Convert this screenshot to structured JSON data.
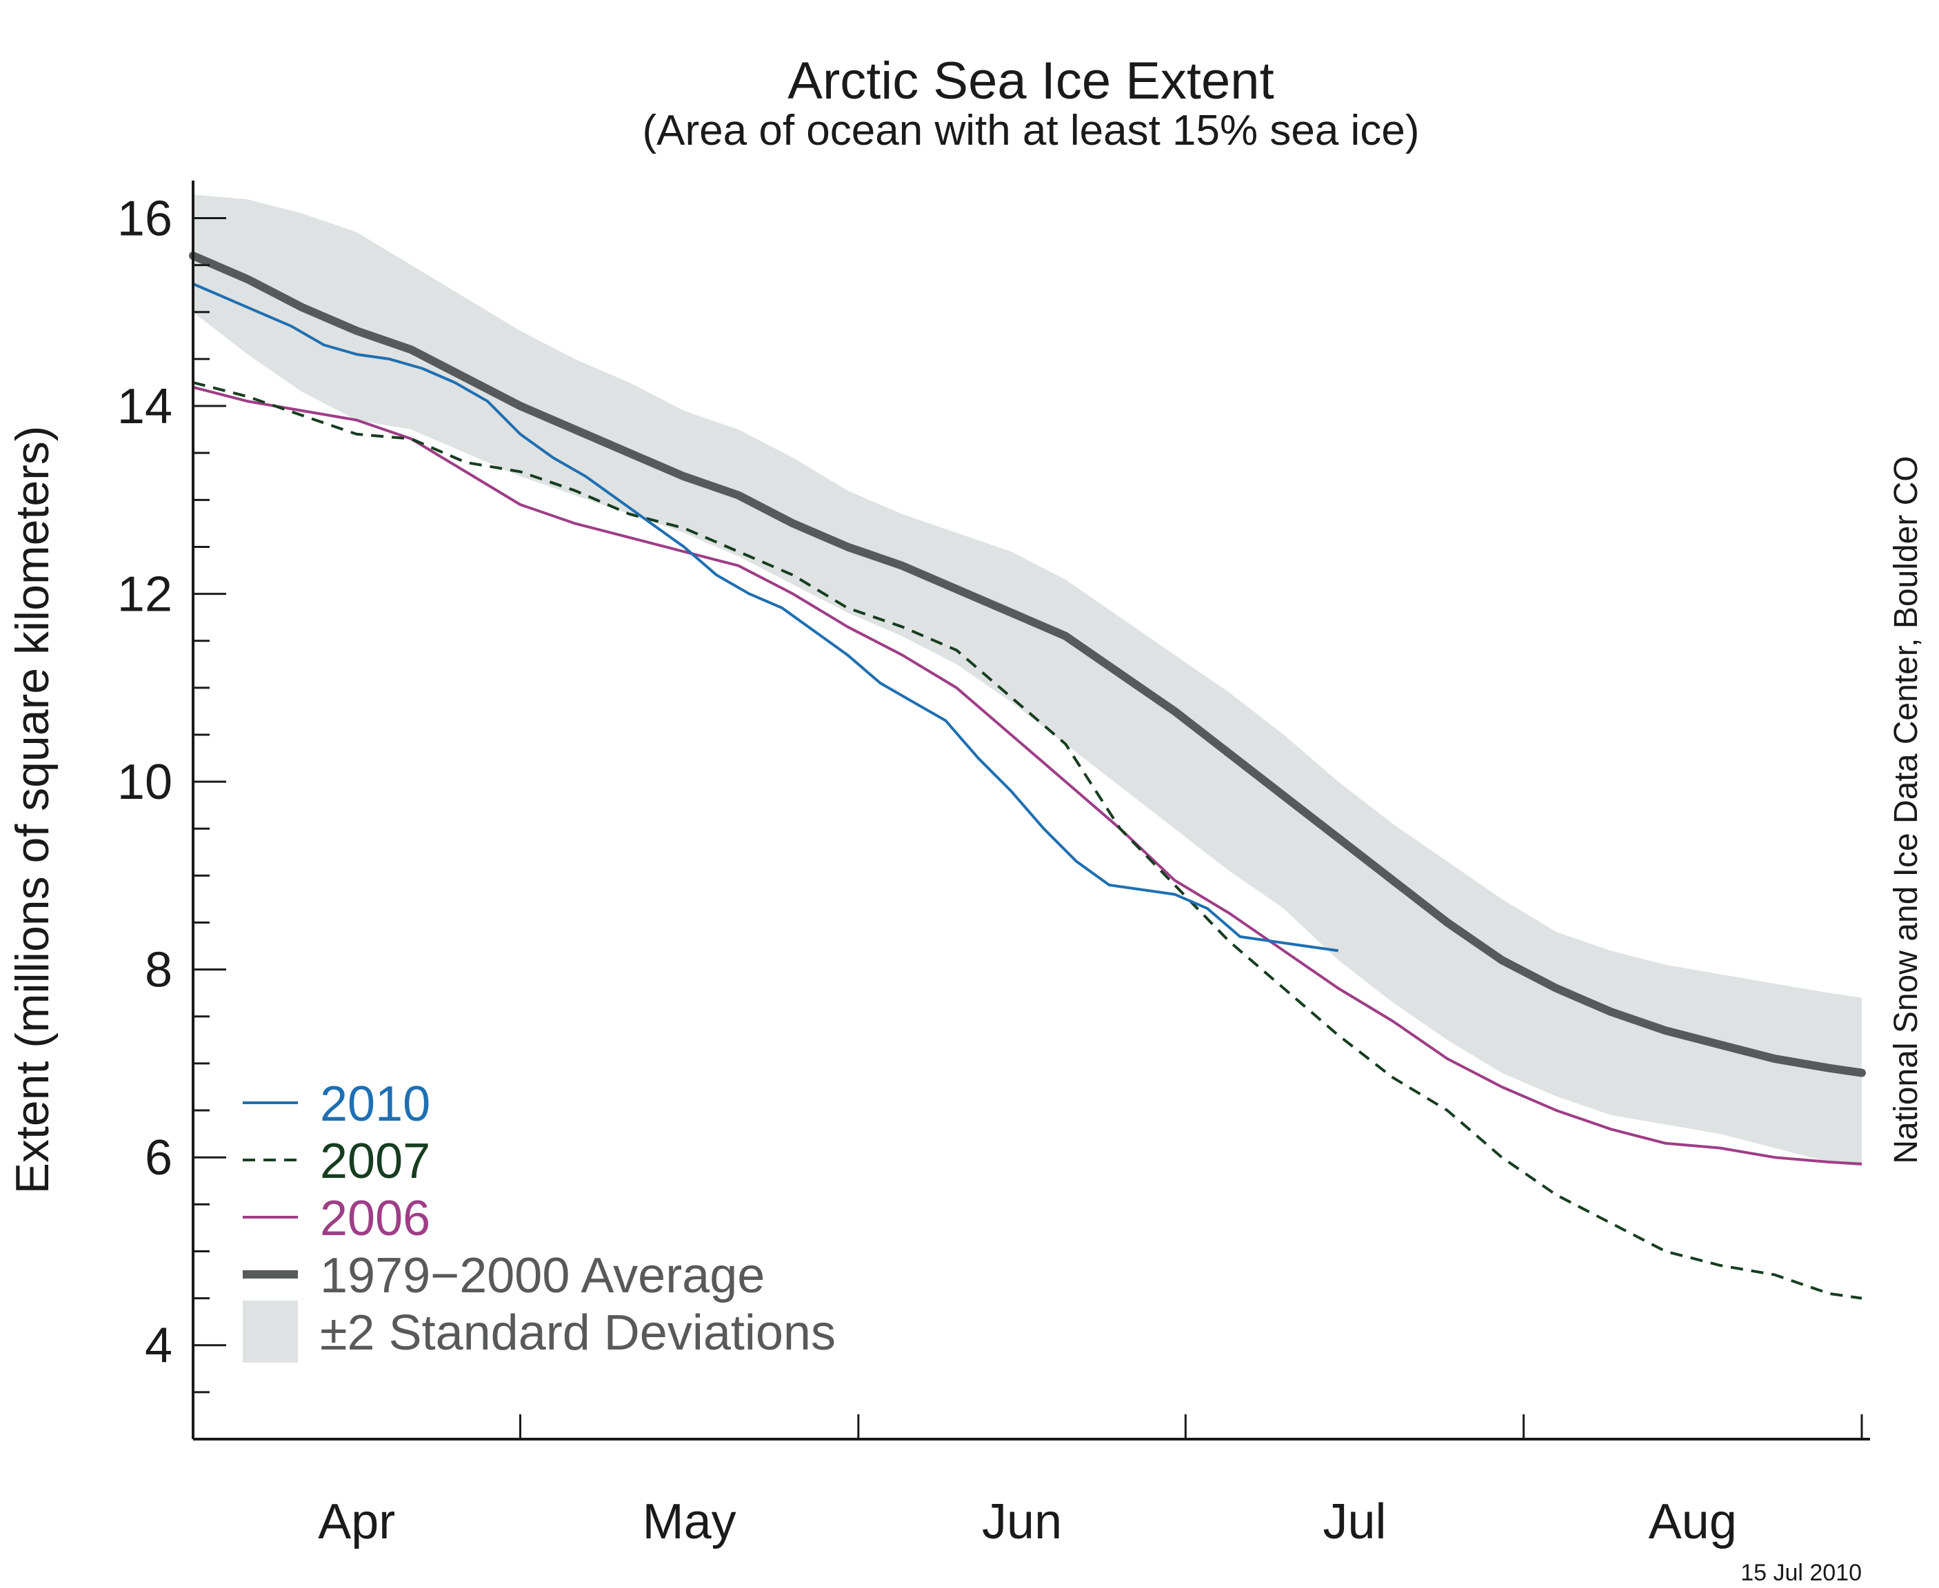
{
  "chart_data": {
    "type": "line",
    "title": "Arctic Sea Ice Extent",
    "subtitle": "(Area of ocean with at least 15% sea ice)",
    "ylabel": "Extent (millions of square kilometers)",
    "xlabel": "",
    "ylim": [
      3,
      16.4
    ],
    "xlim": [
      0,
      153
    ],
    "yticks": [
      4,
      6,
      8,
      10,
      12,
      14,
      16
    ],
    "xtick_months": [
      "Apr",
      "May",
      "Jun",
      "Jul",
      "Aug"
    ],
    "month_boundaries": [
      0,
      30,
      61,
      91,
      122,
      153
    ],
    "grid": false,
    "legend_position": "bottom-left",
    "credit": "National Snow and Ice Data Center, Boulder CO",
    "date": "15 Jul 2010",
    "series": [
      {
        "name": "2010",
        "color": "#1f6fb2",
        "style": "solid",
        "x": [
          0,
          3,
          6,
          9,
          12,
          15,
          18,
          21,
          24,
          27,
          30,
          33,
          36,
          39,
          42,
          45,
          48,
          51,
          54,
          57,
          60,
          63,
          66,
          69,
          72,
          75,
          78,
          81,
          84,
          87,
          90,
          93,
          96,
          99,
          102,
          105
        ],
        "y": [
          15.3,
          15.15,
          15.0,
          14.85,
          14.65,
          14.55,
          14.5,
          14.4,
          14.25,
          14.05,
          13.7,
          13.45,
          13.25,
          13.0,
          12.75,
          12.5,
          12.2,
          12.0,
          11.85,
          11.6,
          11.35,
          11.05,
          10.85,
          10.65,
          10.25,
          9.9,
          9.5,
          9.15,
          8.9,
          8.85,
          8.8,
          8.65,
          8.35,
          8.3,
          8.25,
          8.2
        ]
      },
      {
        "name": "2007",
        "color": "#173d21",
        "style": "dashed",
        "x": [
          0,
          5,
          10,
          15,
          20,
          25,
          30,
          35,
          40,
          45,
          50,
          55,
          60,
          65,
          70,
          75,
          80,
          85,
          90,
          95,
          100,
          105,
          110,
          115,
          120,
          125,
          130,
          135,
          140,
          145,
          150,
          153
        ],
        "y": [
          14.25,
          14.1,
          13.9,
          13.7,
          13.65,
          13.4,
          13.3,
          13.1,
          12.85,
          12.7,
          12.45,
          12.2,
          11.85,
          11.65,
          11.4,
          10.9,
          10.4,
          9.5,
          8.9,
          8.3,
          7.8,
          7.3,
          6.85,
          6.5,
          6.0,
          5.6,
          5.3,
          5.0,
          4.85,
          4.75,
          4.55,
          4.5
        ]
      },
      {
        "name": "2006",
        "color": "#9e3e86",
        "style": "solid",
        "x": [
          0,
          5,
          10,
          15,
          20,
          25,
          30,
          35,
          40,
          45,
          50,
          55,
          60,
          65,
          70,
          75,
          80,
          85,
          90,
          95,
          100,
          105,
          110,
          115,
          120,
          125,
          130,
          135,
          140,
          145,
          150,
          153
        ],
        "y": [
          14.2,
          14.05,
          13.95,
          13.85,
          13.65,
          13.3,
          12.95,
          12.75,
          12.6,
          12.45,
          12.3,
          12.0,
          11.65,
          11.35,
          11.0,
          10.5,
          10.0,
          9.5,
          8.95,
          8.6,
          8.2,
          7.8,
          7.45,
          7.05,
          6.75,
          6.5,
          6.3,
          6.15,
          6.1,
          6.0,
          5.95,
          5.93
        ]
      },
      {
        "name": "1979−2000 Average",
        "color": "#58595b",
        "style": "thick",
        "x": [
          0,
          5,
          10,
          15,
          20,
          25,
          30,
          35,
          40,
          45,
          50,
          55,
          60,
          65,
          70,
          75,
          80,
          85,
          90,
          95,
          100,
          105,
          110,
          115,
          120,
          125,
          130,
          135,
          140,
          145,
          150,
          153
        ],
        "y": [
          15.6,
          15.35,
          15.05,
          14.8,
          14.6,
          14.3,
          14.0,
          13.75,
          13.5,
          13.25,
          13.05,
          12.75,
          12.5,
          12.3,
          12.05,
          11.8,
          11.55,
          11.15,
          10.75,
          10.3,
          9.85,
          9.4,
          8.95,
          8.5,
          8.1,
          7.8,
          7.55,
          7.35,
          7.2,
          7.05,
          6.95,
          6.9
        ]
      },
      {
        "name": "±2 Standard Deviations",
        "color": "#dfe2e2",
        "style": "band",
        "x": [
          0,
          5,
          10,
          15,
          20,
          25,
          30,
          35,
          40,
          45,
          50,
          55,
          60,
          65,
          70,
          75,
          80,
          85,
          90,
          95,
          100,
          105,
          110,
          115,
          120,
          125,
          130,
          135,
          140,
          145,
          150,
          153
        ],
        "upper": [
          16.25,
          16.2,
          16.05,
          15.85,
          15.5,
          15.15,
          14.8,
          14.5,
          14.25,
          13.95,
          13.75,
          13.45,
          13.1,
          12.85,
          12.65,
          12.45,
          12.15,
          11.75,
          11.35,
          10.95,
          10.5,
          10.0,
          9.55,
          9.15,
          8.75,
          8.4,
          8.2,
          8.05,
          7.95,
          7.85,
          7.75,
          7.7
        ],
        "lower": [
          15.0,
          14.55,
          14.15,
          13.85,
          13.75,
          13.5,
          13.25,
          13.05,
          12.85,
          12.65,
          12.4,
          12.1,
          11.8,
          11.55,
          11.25,
          10.85,
          10.4,
          9.95,
          9.5,
          9.05,
          8.65,
          8.1,
          7.65,
          7.25,
          6.9,
          6.65,
          6.45,
          6.35,
          6.25,
          6.1,
          5.95,
          5.9
        ]
      }
    ]
  }
}
